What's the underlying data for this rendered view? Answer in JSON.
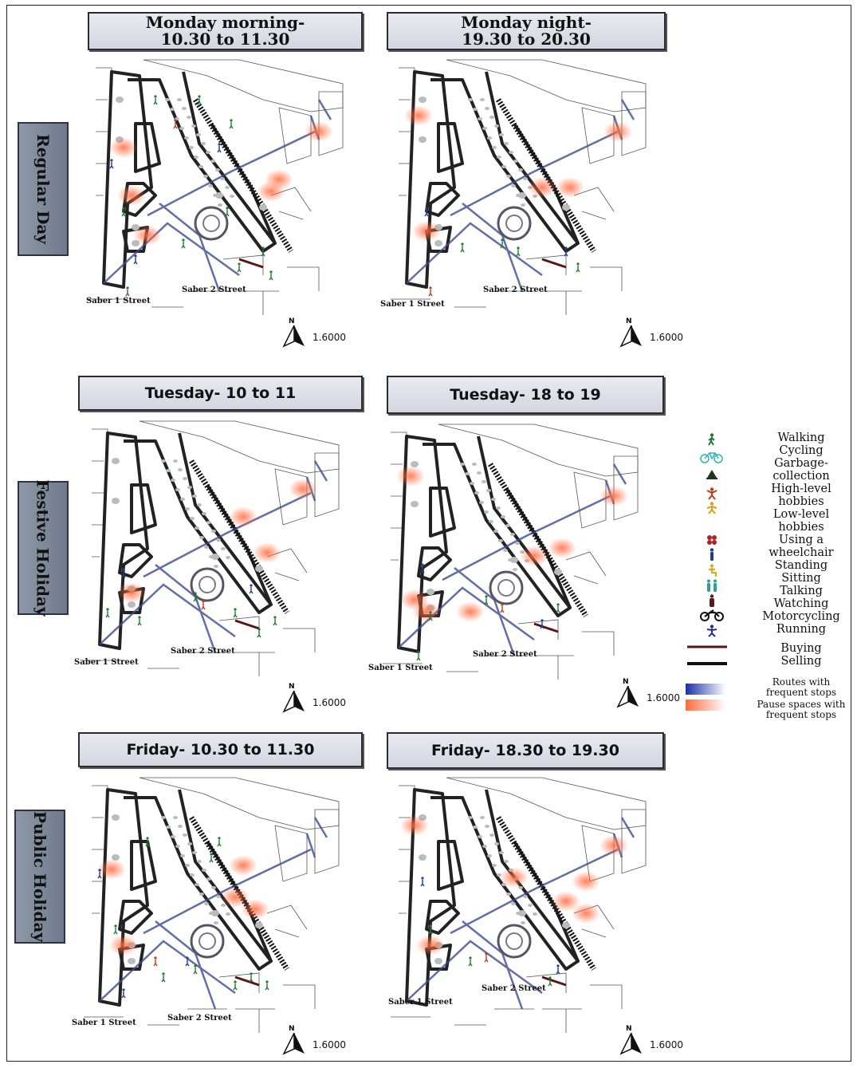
{
  "rows": [
    {
      "label": "Regular Day",
      "panels": [
        {
          "title_line1": "Monday morning-",
          "title_line2": "10.30 to 11.30",
          "street1": "Saber 1 Street",
          "street2": "Saber 2 Street",
          "scale": "1.6000"
        },
        {
          "title_line1": "Monday night-",
          "title_line2": "19.30 to 20.30",
          "street1": "Saber 1 Street",
          "street2": "Saber 2 Street",
          "scale": "1.6000"
        }
      ]
    },
    {
      "label": "Festive Holiday",
      "panels": [
        {
          "title_line1": "Tuesday- 10 to 11",
          "title_line2": "",
          "street1": "Saber 1 Street",
          "street2": "Saber 2 Street",
          "scale": "1.6000"
        },
        {
          "title_line1": "Tuesday- 18 to 19",
          "title_line2": "",
          "street1": "Saber 1 Street",
          "street2": "Saber 2 Street",
          "scale": "1.6000"
        }
      ]
    },
    {
      "label": "Public Holiday",
      "panels": [
        {
          "title_line1": "Friday- 10.30 to 11.30",
          "title_line2": "",
          "street1": "Saber 1 Street",
          "street2": "Saber 2 Street",
          "scale": "1.6000"
        },
        {
          "title_line1": "Friday- 18.30 to 19.30",
          "title_line2": "",
          "street1": "Saber 1 Street",
          "street2": "Saber 2 Street",
          "scale": "1.6000"
        }
      ]
    }
  ],
  "north_label": "N",
  "legend": [
    {
      "icon": "walking-icon",
      "text": "Walking"
    },
    {
      "icon": "cycling-icon",
      "text": "Cycling"
    },
    {
      "icon": "garbage-collection-icon",
      "text": "Garbage-\ncollection"
    },
    {
      "icon": "high-level-hobbies-icon",
      "text": "High-level\nhobbies"
    },
    {
      "icon": "low-level-hobbies-icon",
      "text": "Low-level\nhobbies"
    },
    {
      "icon": "wheelchair-icon",
      "text": "Using a\nwheelchair"
    },
    {
      "icon": "standing-icon",
      "text": "Standing"
    },
    {
      "icon": "sitting-icon",
      "text": "Sitting"
    },
    {
      "icon": "talking-icon",
      "text": "Talking"
    },
    {
      "icon": "watching-icon",
      "text": "Watching"
    },
    {
      "icon": "motorcycling-icon",
      "text": "Motorcycling"
    },
    {
      "icon": "running-icon",
      "text": "Running"
    },
    {
      "icon": "buying-line",
      "text": "Buying"
    },
    {
      "icon": "selling-line",
      "text": "Selling"
    },
    {
      "icon": "routes-gradient",
      "text": "Routes with\nfrequent stops"
    },
    {
      "icon": "pause-gradient",
      "text": "Pause spaces with\nfrequent stops"
    }
  ],
  "colors": {
    "walking": "#1e7a2e",
    "cycling": "#2bb3c0",
    "high_hobbies": "#c0391b",
    "low_hobbies": "#d4a017",
    "wheelchair": "#b0232a",
    "standing": "#1e3f8f",
    "sitting": "#d1b21a",
    "talking": "#2aa198",
    "watching": "#5a1a1a",
    "running": "#2c2c8c",
    "buying": "#5a1414",
    "selling": "#111111",
    "route": "#1b2fa8",
    "pause": "#ff6a3d"
  }
}
